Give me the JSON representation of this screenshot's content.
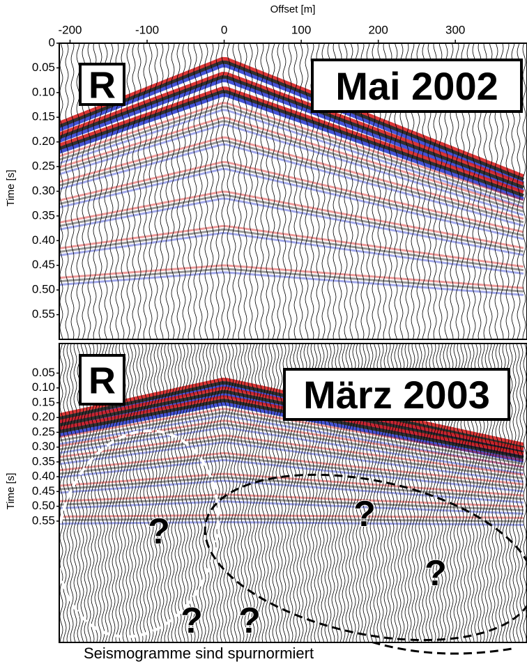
{
  "chart_data": [
    {
      "type": "seismogram",
      "xlabel": "Offset [m]",
      "ylabel": "Time [s]",
      "xlim": [
        -214,
        393
      ],
      "xticks": [
        -200,
        -100,
        0,
        100,
        200,
        300
      ],
      "ylim": [
        0,
        0.6
      ],
      "yticks": [
        0,
        0.05,
        {
          "value": 0.1,
          "label": "0.10"
        },
        0.15,
        {
          "value": 0.2,
          "label": "0.20"
        },
        0.25,
        {
          "value": 0.3,
          "label": "0.30"
        },
        0.35,
        {
          "value": 0.4,
          "label": "0.40"
        },
        0.45,
        {
          "value": 0.5,
          "label": "0.50"
        },
        0.55
      ],
      "annotations": [
        "R",
        "Mai 2002"
      ]
    },
    {
      "type": "seismogram",
      "ylabel": "Time [s]",
      "xlim": [
        -214,
        393
      ],
      "ylim": [
        -0.05,
        0.96
      ],
      "yticks": [
        0.05,
        {
          "value": 0.1,
          "label": "0.10"
        },
        0.15,
        {
          "value": 0.2,
          "label": "0.20"
        },
        0.25,
        {
          "value": 0.3,
          "label": "0.30"
        },
        0.35,
        {
          "value": 0.4,
          "label": "0.40"
        },
        0.45,
        {
          "value": 0.5,
          "label": "0.50"
        },
        0.55
      ],
      "annotations": [
        "R",
        "März 2003",
        "?",
        "?",
        "?",
        "?",
        "?"
      ]
    }
  ],
  "footnote": "Seismogramme sind spurnormiert"
}
